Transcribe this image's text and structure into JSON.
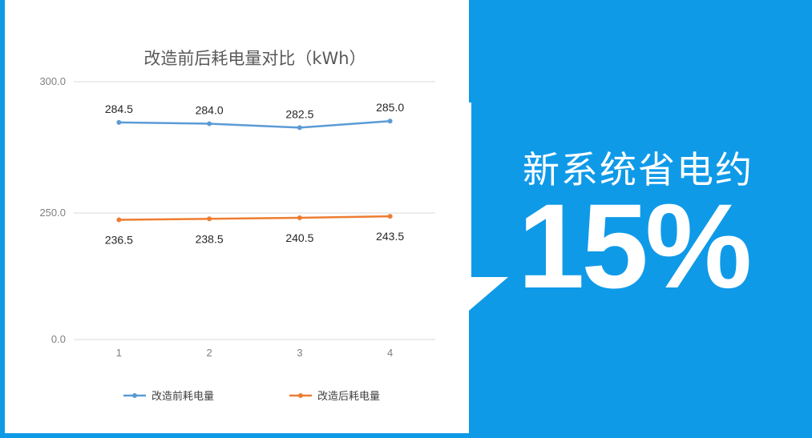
{
  "chart_data": {
    "type": "line",
    "title": "改造前后耗电量对比（kWh）",
    "categories": [
      "1",
      "2",
      "3",
      "4"
    ],
    "y_ticks": [
      "0.0",
      "250.0",
      "300.0"
    ],
    "y_axis_note": "broken axis: 0.0 directly below 250.0",
    "ylim": [
      0,
      300
    ],
    "series": [
      {
        "name": "改造前耗电量",
        "color": "#5b9bd5",
        "values": [
          284.5,
          284.0,
          282.5,
          285.0
        ],
        "labels": [
          "284.5",
          "284.0",
          "282.5",
          "285.0"
        ],
        "label_position": "above"
      },
      {
        "name": "改造后耗电量",
        "color": "#ed7d31",
        "values": [
          236.5,
          238.5,
          240.5,
          243.5
        ],
        "labels": [
          "236.5",
          "238.5",
          "240.5",
          "243.5"
        ],
        "label_position": "below"
      }
    ],
    "grid": true,
    "legend": "bottom"
  },
  "promo": {
    "headline": "新系统省电约",
    "percent": "15%",
    "background_color": "#0f9ae8",
    "arrow": "down-arrow-icon"
  }
}
